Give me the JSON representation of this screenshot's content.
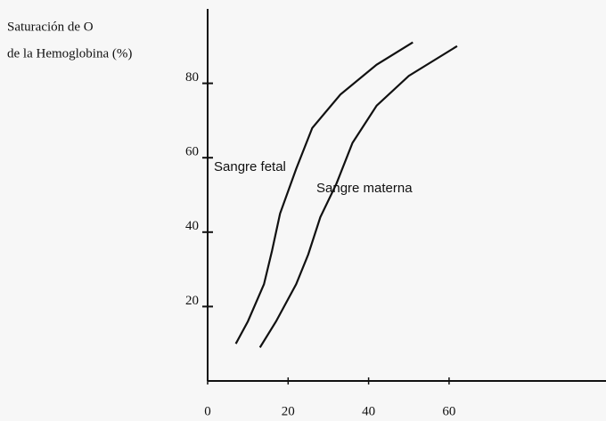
{
  "chart_data": {
    "type": "line",
    "ylabel_lines": [
      "Saturación de O",
      "de la Hemoglobina (%)"
    ],
    "series": [
      {
        "name": "Sangre fetal",
        "color": "#111111",
        "x": [
          7,
          10,
          14,
          16,
          18,
          22,
          26,
          33,
          42,
          51
        ],
        "values": [
          10,
          16,
          26,
          35,
          45,
          57,
          68,
          77,
          85,
          91
        ]
      },
      {
        "name": "Sangre materna",
        "color": "#111111",
        "x": [
          13,
          17,
          22,
          25,
          28,
          32,
          36,
          42,
          50,
          62
        ],
        "values": [
          9,
          16,
          26,
          34,
          44,
          53,
          64,
          74,
          82,
          90
        ]
      }
    ],
    "xlim": [
      0,
      99
    ],
    "xticks": [
      0,
      20,
      40,
      60
    ],
    "ylim": [
      0,
      100
    ],
    "yticks": [
      20,
      40,
      60,
      80
    ]
  }
}
